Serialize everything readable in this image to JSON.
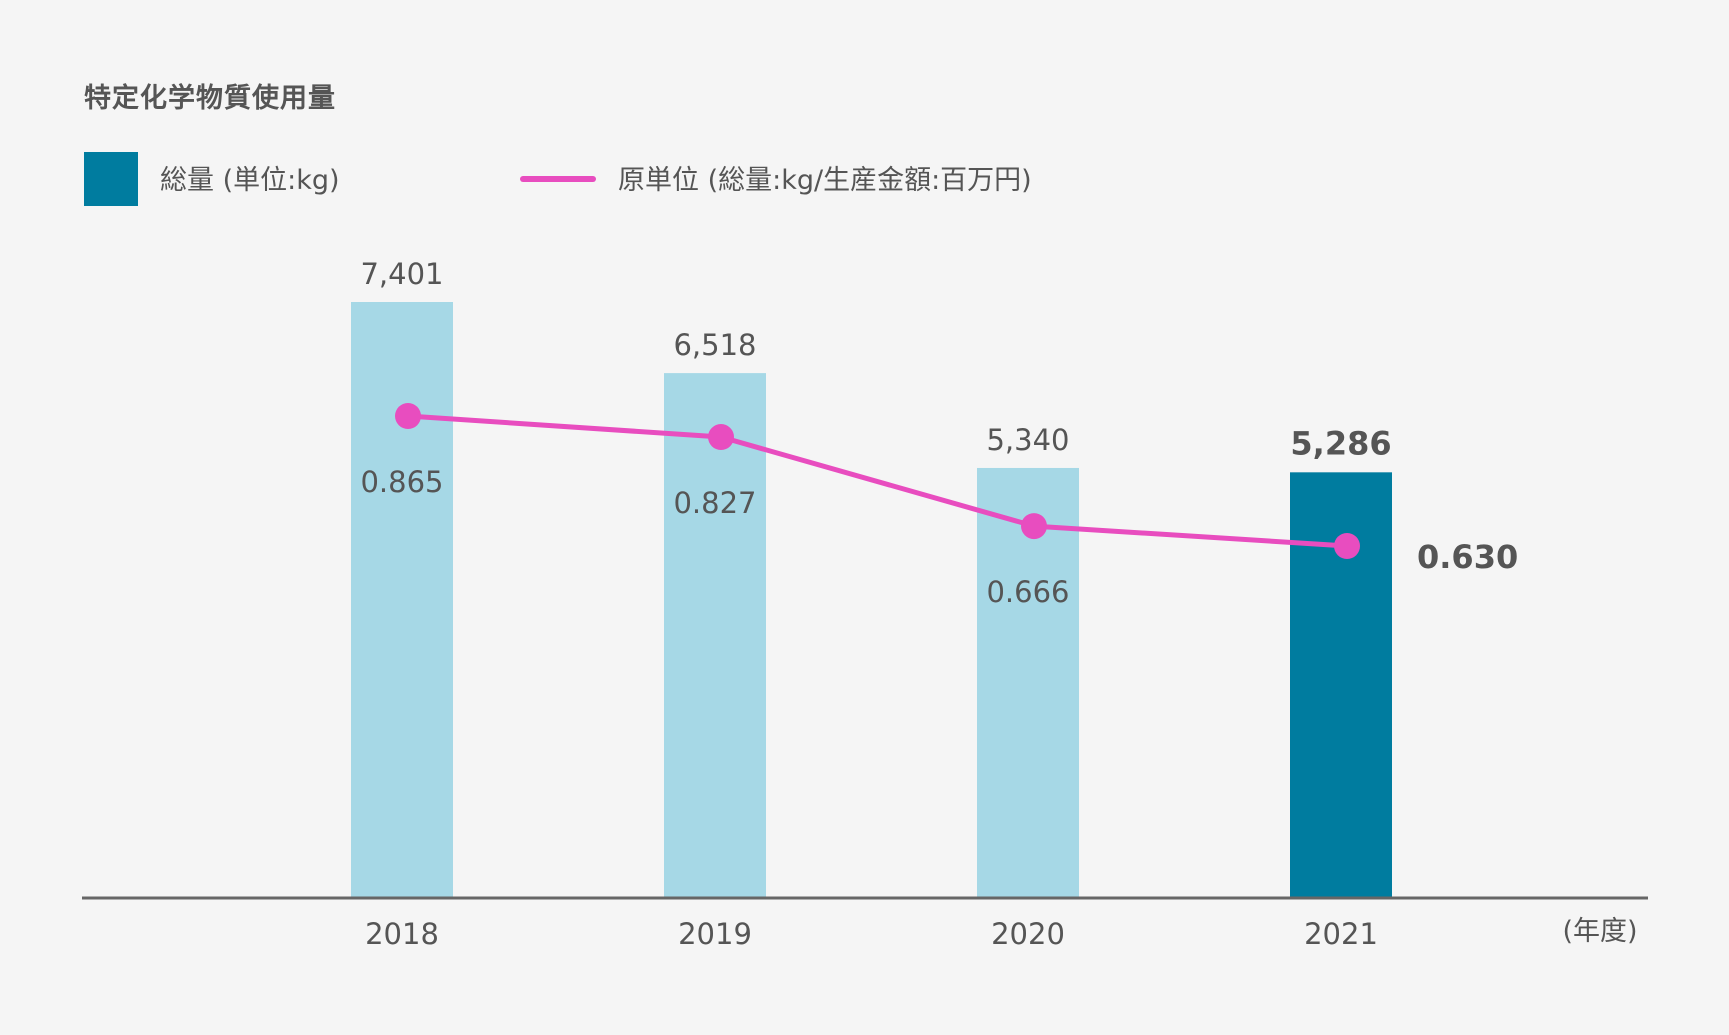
{
  "chart_data": {
    "type": "bar",
    "title": "特定化学物質使用量",
    "categories": [
      "2018",
      "2019",
      "2020",
      "2021"
    ],
    "xlabel": "(年度)",
    "ylabel": "",
    "series": [
      {
        "name": "総量 (単位:kg)",
        "type": "bar",
        "values": [
          7401,
          6518,
          5340,
          5286
        ],
        "labels": [
          "7,401",
          "6,518",
          "5,340",
          "5,286"
        ]
      },
      {
        "name": "原単位 (総量:kg/生産金額:百万円)",
        "type": "line",
        "values": [
          0.865,
          0.827,
          0.666,
          0.63
        ],
        "labels": [
          "0.865",
          "0.827",
          "0.666",
          "0.630"
        ]
      }
    ],
    "ylim": [
      0,
      7401
    ],
    "y2lim": [
      0,
      0.865
    ],
    "highlight_index": 3,
    "legend": "top-left",
    "grid": false
  },
  "colors": {
    "bar_default": "#a6d8e6",
    "bar_highlight": "#007c9f",
    "line": "#e84dbf",
    "axis": "#666666",
    "text": "#555555"
  }
}
